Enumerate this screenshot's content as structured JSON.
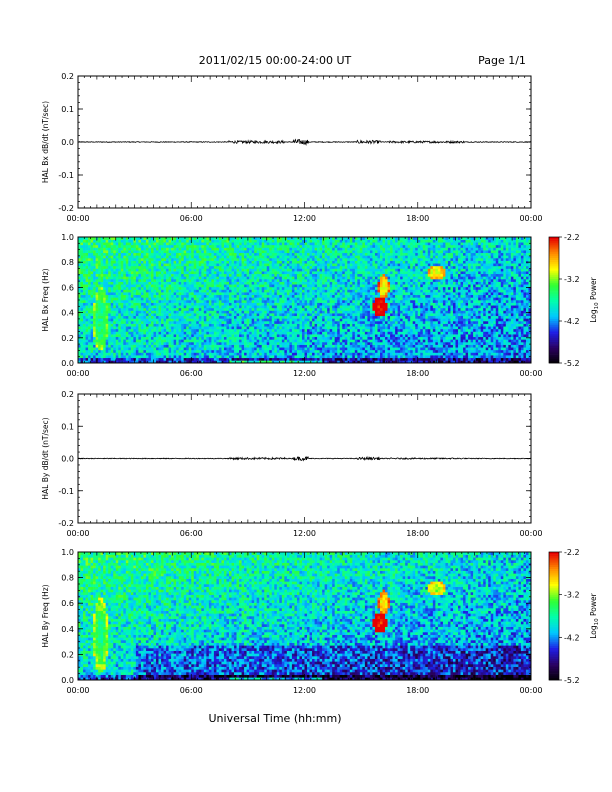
{
  "header": {
    "title": "2011/02/15  00:00-24:00 UT",
    "page": "Page 1/1"
  },
  "footer": {
    "xlabel": "Universal Time (hh:mm)"
  },
  "colors": {
    "scale": [
      "#000000",
      "#2a0060",
      "#1e1ee6",
      "#00c8ff",
      "#00ffaa",
      "#32ff32",
      "#ffff00",
      "#ff8c00",
      "#e60000"
    ]
  },
  "chart_data": [
    {
      "type": "line",
      "ylabel": "HAL Bx dB/dt (nT/sec)",
      "xlim": [
        0,
        24
      ],
      "ylim": [
        -0.2,
        0.2
      ],
      "x_ticks": [
        "00:00",
        "06:00",
        "12:00",
        "18:00",
        "00:00"
      ],
      "y_ticks": [
        "0.2",
        "0.1",
        "0.0",
        "-0.1",
        "-0.2"
      ],
      "y_tick_values": [
        0.2,
        0.1,
        0.0,
        -0.1,
        -0.2
      ],
      "baseline": 0.0,
      "activity": [
        {
          "x": [
            8.0,
            11.0
          ],
          "amp": 0.004
        },
        {
          "x": [
            11.4,
            12.2
          ],
          "amp": 0.008
        },
        {
          "x": [
            14.8,
            16.0
          ],
          "amp": 0.005
        },
        {
          "x": [
            16.5,
            20.5
          ],
          "amp": 0.003
        }
      ]
    },
    {
      "type": "heatmap",
      "ylabel": "HAL Bx Freq (Hz)",
      "xlim": [
        0,
        24
      ],
      "ylim": [
        0.0,
        1.0
      ],
      "x_ticks": [
        "00:00",
        "06:00",
        "12:00",
        "18:00",
        "00:00"
      ],
      "y_ticks": [
        "1.0",
        "0.8",
        "0.6",
        "0.4",
        "0.2",
        "0.0"
      ],
      "y_tick_values": [
        1.0,
        0.8,
        0.6,
        0.4,
        0.2,
        0.0
      ],
      "colorbar": {
        "label": "Log",
        "label_sub": "10",
        "label_suffix": " Power",
        "range": [
          -5.2,
          -2.2
        ],
        "ticks": [
          "-2.2",
          "-3.2",
          "-4.2",
          "-5.2"
        ],
        "tick_values": [
          -2.2,
          -3.2,
          -4.2,
          -5.2
        ]
      },
      "features": [
        {
          "t": 16.0,
          "f": 0.45,
          "dt": 0.35,
          "df": 0.08,
          "power": -2.3
        },
        {
          "t": 16.2,
          "f": 0.6,
          "dt": 0.3,
          "df": 0.1,
          "power": -3.0
        },
        {
          "t": 19.0,
          "f": 0.72,
          "dt": 0.5,
          "df": 0.06,
          "power": -3.1
        },
        {
          "t": 1.2,
          "f": 0.35,
          "dt": 0.4,
          "df": 0.25,
          "power": -3.7
        }
      ]
    },
    {
      "type": "line",
      "ylabel": "HAL By dB/dt (nT/sec)",
      "xlim": [
        0,
        24
      ],
      "ylim": [
        -0.2,
        0.2
      ],
      "x_ticks": [
        "00:00",
        "06:00",
        "12:00",
        "18:00",
        "00:00"
      ],
      "y_ticks": [
        "0.2",
        "0.1",
        "0.0",
        "-0.1",
        "-0.2"
      ],
      "y_tick_values": [
        0.2,
        0.1,
        0.0,
        -0.1,
        -0.2
      ],
      "baseline": 0.0,
      "activity": [
        {
          "x": [
            8.0,
            11.0
          ],
          "amp": 0.003
        },
        {
          "x": [
            11.4,
            12.2
          ],
          "amp": 0.006
        },
        {
          "x": [
            14.8,
            16.0
          ],
          "amp": 0.004
        },
        {
          "x": [
            16.5,
            20.5
          ],
          "amp": 0.002
        }
      ]
    },
    {
      "type": "heatmap",
      "ylabel": "HAL By Freq (Hz)",
      "xlim": [
        0,
        24
      ],
      "ylim": [
        0.0,
        1.0
      ],
      "x_ticks": [
        "00:00",
        "06:00",
        "12:00",
        "18:00",
        "00:00"
      ],
      "y_ticks": [
        "1.0",
        "0.8",
        "0.6",
        "0.4",
        "0.2",
        "0.0"
      ],
      "y_tick_values": [
        1.0,
        0.8,
        0.6,
        0.4,
        0.2,
        0.0
      ],
      "colorbar": {
        "label": "Log",
        "label_sub": "10",
        "label_suffix": " Power",
        "range": [
          -5.2,
          -2.2
        ],
        "ticks": [
          "-2.2",
          "-3.2",
          "-4.2",
          "-5.2"
        ],
        "tick_values": [
          -2.2,
          -3.2,
          -4.2,
          -5.2
        ]
      },
      "features": [
        {
          "t": 16.0,
          "f": 0.45,
          "dt": 0.35,
          "df": 0.08,
          "power": -2.3
        },
        {
          "t": 16.2,
          "f": 0.6,
          "dt": 0.3,
          "df": 0.1,
          "power": -3.0
        },
        {
          "t": 19.0,
          "f": 0.72,
          "dt": 0.5,
          "df": 0.06,
          "power": -3.2
        },
        {
          "t": 1.2,
          "f": 0.35,
          "dt": 0.4,
          "df": 0.3,
          "power": -3.6
        }
      ]
    }
  ]
}
